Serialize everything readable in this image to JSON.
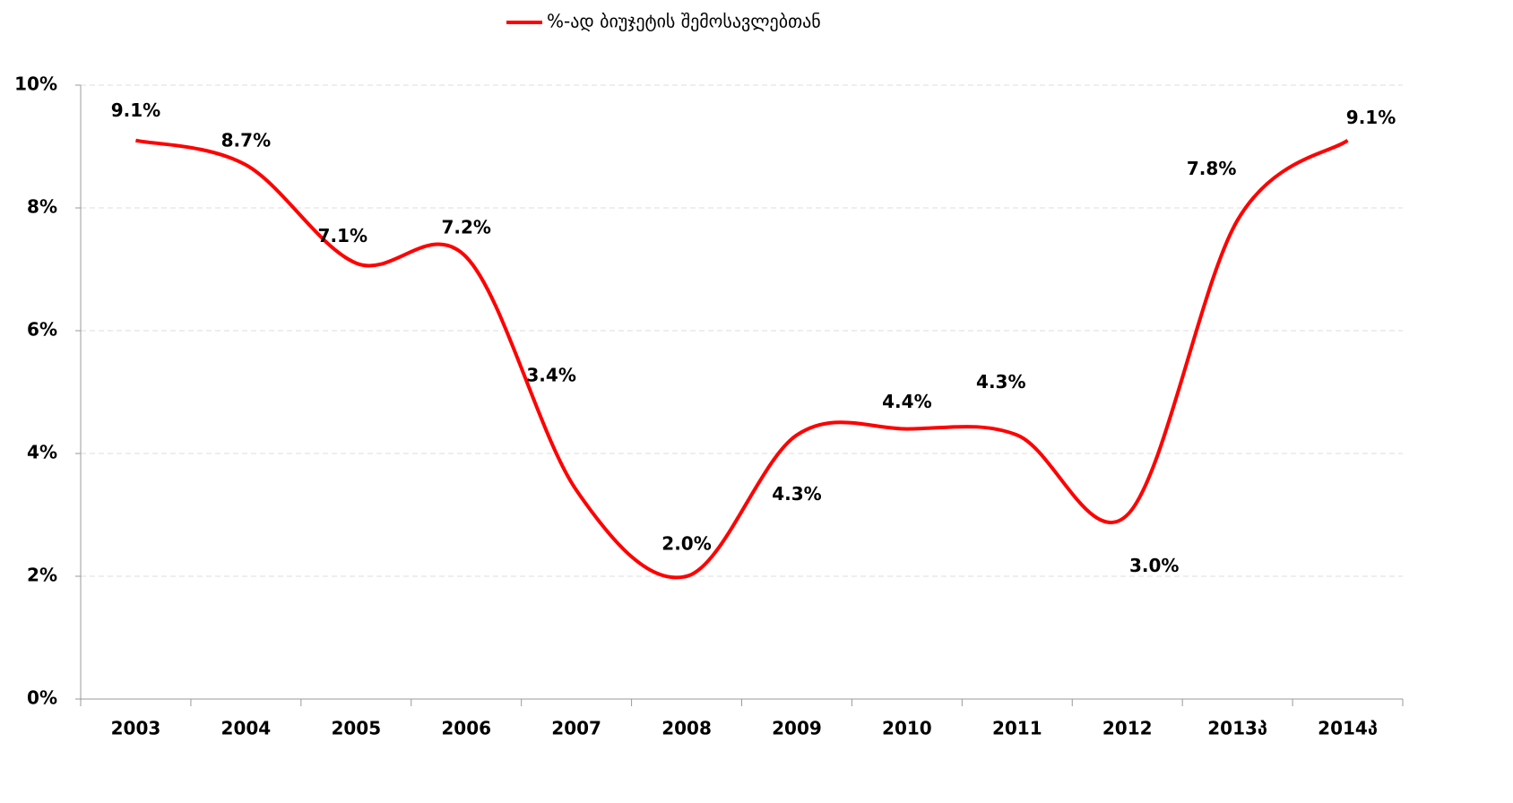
{
  "chart_data": {
    "type": "line",
    "categories": [
      "2003",
      "2004",
      "2005",
      "2006",
      "2007",
      "2008",
      "2009",
      "2010",
      "2011",
      "2012",
      "2013პ",
      "2014პ"
    ],
    "series": [
      {
        "name": "%-ად ბიუჯეტის შემოსავლებთან",
        "color": "#ff0000",
        "values": [
          9.1,
          8.7,
          7.1,
          7.2,
          3.4,
          2.0,
          4.3,
          4.4,
          4.3,
          3.0,
          7.8,
          9.1
        ],
        "value_labels": [
          "9.1%",
          "8.7%",
          "7.1%",
          "7.2%",
          "3.4%",
          "2.0%",
          "4.3%",
          "4.4%",
          "4.3%",
          "3.0%",
          "7.8%",
          "9.1%"
        ]
      }
    ],
    "ylim": [
      0,
      10
    ],
    "yticks": [
      {
        "value": 0,
        "label": "0%"
      },
      {
        "value": 2,
        "label": "2%"
      },
      {
        "value": 4,
        "label": "4%"
      },
      {
        "value": 6,
        "label": "6%"
      },
      {
        "value": 8,
        "label": "8%"
      },
      {
        "value": 10,
        "label": "10%"
      }
    ],
    "grid": true,
    "smooth": true,
    "legend": "top"
  }
}
